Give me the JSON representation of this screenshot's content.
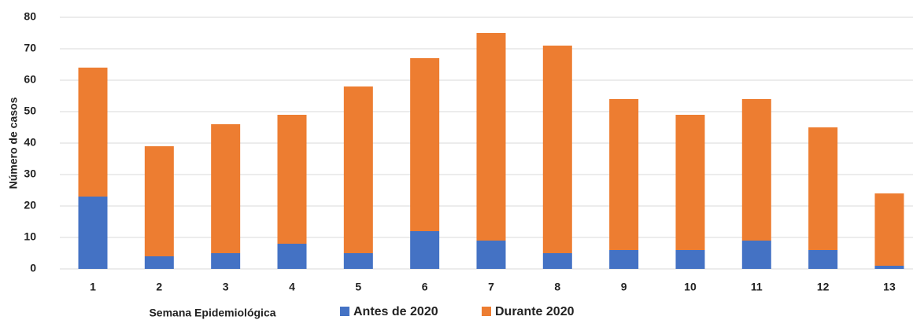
{
  "chart_data": {
    "type": "stacked_bar",
    "x_label": "Semana Epidemiológica",
    "y_label": "Número de casos",
    "categories": [
      "1",
      "2",
      "3",
      "4",
      "5",
      "6",
      "7",
      "8",
      "9",
      "10",
      "11",
      "12",
      "13"
    ],
    "series": [
      {
        "name": "Antes de 2020",
        "color": "#4472c4",
        "values": [
          23,
          4,
          5,
          8,
          5,
          12,
          9,
          5,
          6,
          6,
          9,
          6,
          1
        ]
      },
      {
        "name": "Durante 2020",
        "color": "#ed7d31",
        "values": [
          41,
          35,
          41,
          41,
          53,
          55,
          66,
          66,
          48,
          43,
          45,
          39,
          23
        ]
      }
    ],
    "ylim": [
      0,
      80
    ],
    "yticks": [
      0,
      10,
      20,
      30,
      40,
      50,
      60,
      70,
      80
    ],
    "grid": true
  }
}
